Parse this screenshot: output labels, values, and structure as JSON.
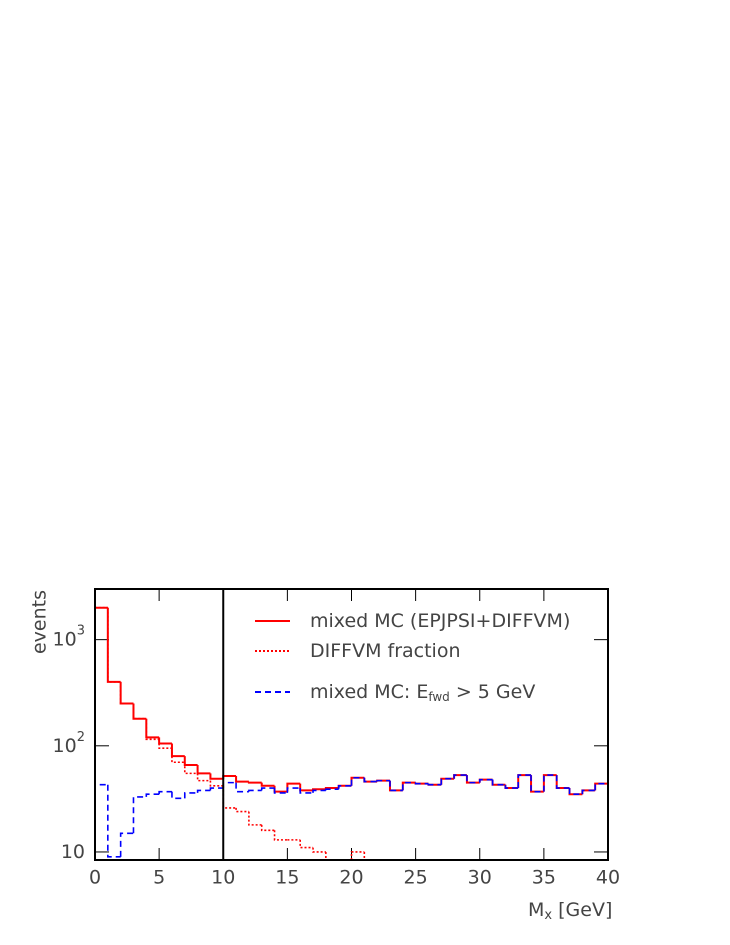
{
  "chart_data": {
    "type": "histogram",
    "ylabel": "events",
    "xlabel": "M",
    "xlabel_subscript": "x",
    "xlabel_suffix": " [GeV]",
    "bins": [
      0,
      1,
      2,
      3,
      4,
      5,
      6,
      7,
      8,
      9,
      10,
      11,
      12,
      13,
      14,
      15,
      16,
      17,
      18,
      19,
      20,
      21,
      22,
      23,
      24,
      25,
      26,
      27,
      28,
      29,
      30,
      31,
      32,
      33,
      34,
      35,
      36,
      37,
      38,
      39,
      40
    ],
    "series": [
      {
        "name": "mixed MC (EPJPSI+DIFFVM)",
        "color": "#ff0000",
        "dash": "solid",
        "values": [
          2000,
          400,
          250,
          180,
          120,
          105,
          80,
          66,
          55,
          49,
          52,
          46,
          45,
          42,
          37,
          44,
          38,
          39,
          40,
          42,
          50,
          46,
          47,
          38,
          45,
          44,
          43,
          49,
          53,
          45,
          48,
          43,
          40,
          53,
          37,
          53,
          40,
          35,
          38,
          44
        ]
      },
      {
        "name": "DIFFVM fraction",
        "color": "#ff0000",
        "dash": "dotted",
        "values": [
          2000,
          400,
          250,
          180,
          115,
          95,
          70,
          55,
          47,
          42,
          26,
          24,
          18,
          16,
          13,
          13,
          11,
          10,
          null,
          null,
          10,
          null,
          null,
          null,
          null,
          null,
          null,
          null,
          null,
          null,
          null,
          null,
          null,
          null,
          null,
          null,
          null,
          null,
          null,
          null
        ]
      },
      {
        "name": "mixed MC: E",
        "name_subscript": "fwd",
        "name_suffix": " > 5 GeV",
        "color": "#0000ff",
        "dash": "dashed",
        "values": [
          43,
          9,
          15,
          33,
          35,
          37,
          32,
          36,
          38,
          40,
          45,
          37,
          38,
          40,
          36,
          40,
          36,
          38,
          39,
          42,
          50,
          46,
          47,
          38,
          45,
          44,
          43,
          49,
          53,
          45,
          48,
          43,
          40,
          53,
          37,
          53,
          40,
          35,
          38,
          44
        ]
      }
    ],
    "vline": 10,
    "xlim": [
      0,
      40
    ],
    "xticks": [
      0,
      5,
      10,
      15,
      20,
      25,
      30,
      35,
      40
    ],
    "ylim": [
      8.4,
      3000
    ],
    "log_y": true,
    "yticks": [
      10,
      {
        "value": 100,
        "label": "10",
        "exponent": "2"
      },
      {
        "value": 1000,
        "label": "10",
        "exponent": "3"
      }
    ]
  }
}
